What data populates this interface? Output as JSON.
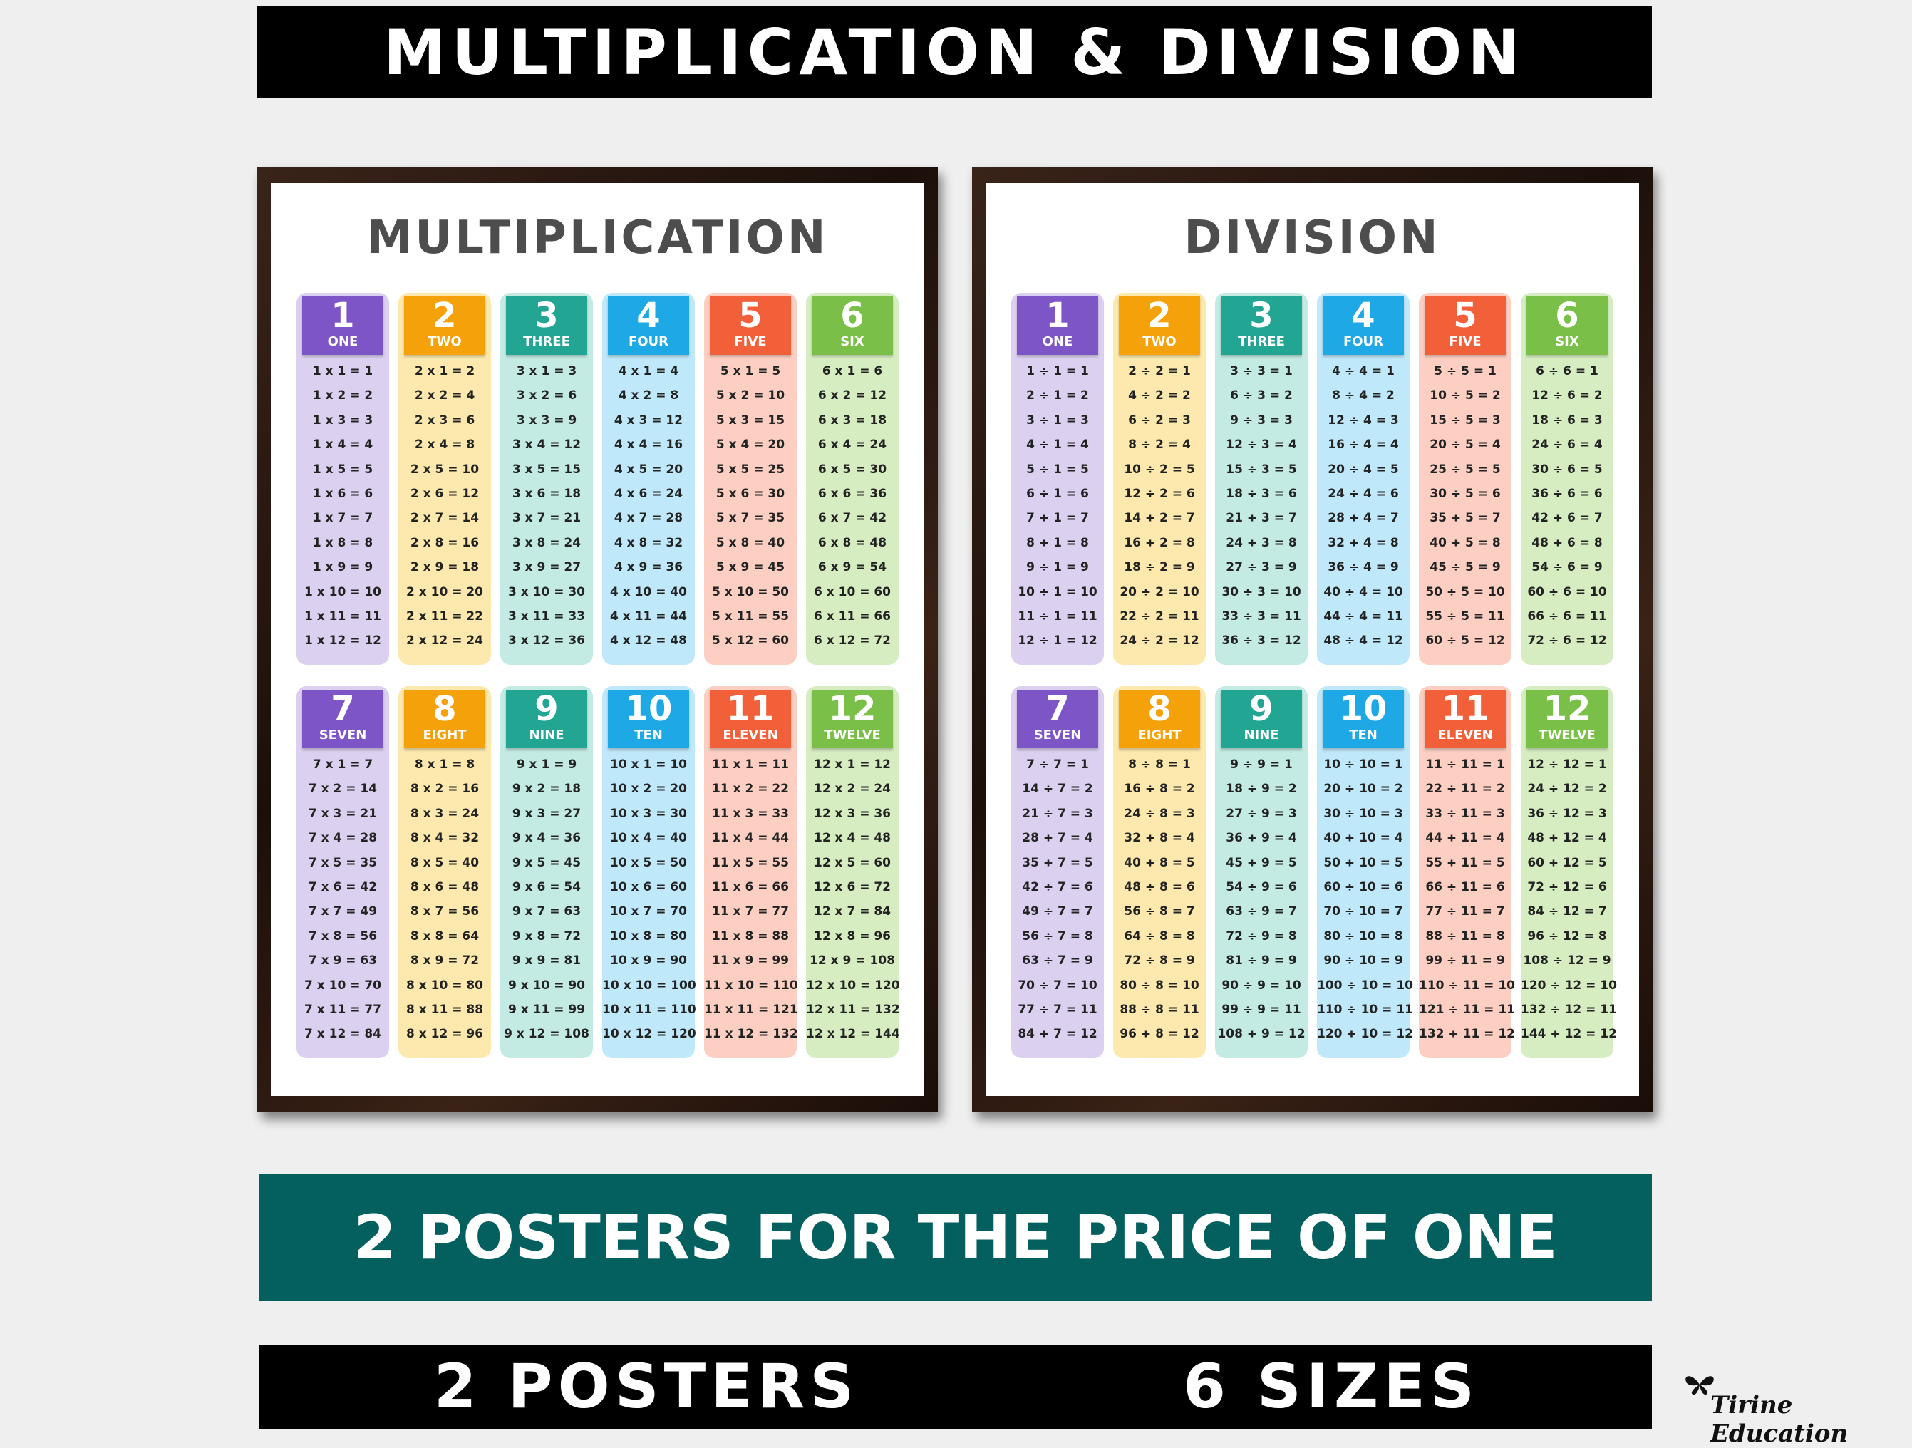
{
  "header": {
    "title": "MULTIPLICATION & DIVISION"
  },
  "posters": [
    {
      "title": "MULTIPLICATION",
      "tables": [
        {
          "number": "1",
          "word": "ONE",
          "rows": [
            "1 x 1 = 1",
            "1 x 2 = 2",
            "1 x 3 = 3",
            "1 x 4 = 4",
            "1 x 5 = 5",
            "1 x 6 = 6",
            "1 x 7 = 7",
            "1 x 8 = 8",
            "1 x 9 = 9",
            "1 x 10 = 10",
            "1 x 11 = 11",
            "1 x 12 = 12"
          ]
        },
        {
          "number": "2",
          "word": "TWO",
          "rows": [
            "2 x 1 = 2",
            "2 x 2 = 4",
            "2 x 3 = 6",
            "2 x 4 = 8",
            "2 x 5 = 10",
            "2 x 6 = 12",
            "2 x 7 = 14",
            "2 x 8 = 16",
            "2 x 9 = 18",
            "2 x 10 = 20",
            "2 x 11 = 22",
            "2 x 12 = 24"
          ]
        },
        {
          "number": "3",
          "word": "THREE",
          "rows": [
            "3 x 1 = 3",
            "3 x 2 = 6",
            "3 x 3 = 9",
            "3 x 4 = 12",
            "3 x 5 = 15",
            "3 x 6 = 18",
            "3 x 7 = 21",
            "3 x 8 = 24",
            "3 x 9 = 27",
            "3 x 10 = 30",
            "3 x 11 = 33",
            "3 x 12 = 36"
          ]
        },
        {
          "number": "4",
          "word": "FOUR",
          "rows": [
            "4 x 1 = 4",
            "4 x 2 = 8",
            "4 x 3 = 12",
            "4 x 4 = 16",
            "4 x 5 = 20",
            "4 x 6 = 24",
            "4 x 7 = 28",
            "4 x 8 = 32",
            "4 x 9 = 36",
            "4 x 10 = 40",
            "4 x 11 = 44",
            "4 x 12 = 48"
          ]
        },
        {
          "number": "5",
          "word": "FIVE",
          "rows": [
            "5 x 1 = 5",
            "5 x 2 = 10",
            "5 x 3 = 15",
            "5 x 4 = 20",
            "5 x 5 = 25",
            "5 x 6 = 30",
            "5 x 7 = 35",
            "5 x 8 = 40",
            "5 x 9 = 45",
            "5 x 10 = 50",
            "5 x 11 = 55",
            "5 x 12 = 60"
          ]
        },
        {
          "number": "6",
          "word": "SIX",
          "rows": [
            "6 x 1 = 6",
            "6 x 2 = 12",
            "6 x 3 = 18",
            "6 x 4 = 24",
            "6 x 5 = 30",
            "6 x 6 = 36",
            "6 x 7 = 42",
            "6 x 8 = 48",
            "6 x 9 = 54",
            "6 x 10 = 60",
            "6 x 11 = 66",
            "6 x 12 = 72"
          ]
        },
        {
          "number": "7",
          "word": "SEVEN",
          "rows": [
            "7 x 1 = 7",
            "7 x 2 = 14",
            "7 x 3 = 21",
            "7 x 4 = 28",
            "7 x 5 = 35",
            "7 x 6 = 42",
            "7 x 7 = 49",
            "7 x 8 = 56",
            "7 x 9 = 63",
            "7 x 10 = 70",
            "7 x 11 = 77",
            "7 x 12 = 84"
          ]
        },
        {
          "number": "8",
          "word": "EIGHT",
          "rows": [
            "8 x 1 = 8",
            "8 x 2 = 16",
            "8 x 3 = 24",
            "8 x 4 = 32",
            "8 x 5 = 40",
            "8 x 6 = 48",
            "8 x 7 = 56",
            "8 x 8 = 64",
            "8 x 9 = 72",
            "8 x 10 = 80",
            "8 x 11 = 88",
            "8 x 12 = 96"
          ]
        },
        {
          "number": "9",
          "word": "NINE",
          "rows": [
            "9 x 1 = 9",
            "9 x 2 = 18",
            "9 x 3 = 27",
            "9 x 4 = 36",
            "9 x 5 = 45",
            "9 x 6 = 54",
            "9 x 7 = 63",
            "9 x 8 = 72",
            "9 x 9 = 81",
            "9 x 10 = 90",
            "9 x 11 = 99",
            "9 x 12 = 108"
          ]
        },
        {
          "number": "10",
          "word": "TEN",
          "rows": [
            "10 x 1 = 10",
            "10 x 2 = 20",
            "10 x 3 = 30",
            "10 x 4 = 40",
            "10 x 5 = 50",
            "10 x 6 = 60",
            "10 x 7 = 70",
            "10 x 8 = 80",
            "10 x 9 = 90",
            "10 x 10 = 100",
            "10 x 11 = 110",
            "10 x 12 = 120"
          ]
        },
        {
          "number": "11",
          "word": "ELEVEN",
          "rows": [
            "11 x 1 = 11",
            "11 x 2 = 22",
            "11 x 3 = 33",
            "11 x 4 = 44",
            "11 x 5 = 55",
            "11 x 6 = 66",
            "11 x 7 = 77",
            "11 x 8 = 88",
            "11 x 9 = 99",
            "11 x 10 = 110",
            "11 x 11 = 121",
            "11 x 12 = 132"
          ]
        },
        {
          "number": "12",
          "word": "TWELVE",
          "rows": [
            "12 x 1 = 12",
            "12 x 2 = 24",
            "12 x 3 = 36",
            "12 x 4 = 48",
            "12 x 5 = 60",
            "12 x 6 = 72",
            "12 x 7 = 84",
            "12 x 8 = 96",
            "12 x 9 = 108",
            "12 x 10 = 120",
            "12 x 11 = 132",
            "12 x 12 = 144"
          ]
        }
      ]
    },
    {
      "title": "DIVISION",
      "tables": [
        {
          "number": "1",
          "word": "ONE",
          "rows": [
            "1 ÷ 1 = 1",
            "2 ÷ 1 = 2",
            "3 ÷ 1 = 3",
            "4 ÷ 1 = 4",
            "5 ÷ 1 = 5",
            "6 ÷ 1 = 6",
            "7 ÷ 1 = 7",
            "8 ÷ 1 = 8",
            "9 ÷ 1 = 9",
            "10 ÷ 1 = 10",
            "11 ÷ 1 = 11",
            "12 ÷ 1 = 12"
          ]
        },
        {
          "number": "2",
          "word": "TWO",
          "rows": [
            "2 ÷ 2 = 1",
            "4 ÷ 2 = 2",
            "6 ÷ 2 = 3",
            "8 ÷ 2 = 4",
            "10 ÷ 2 = 5",
            "12 ÷ 2 = 6",
            "14 ÷ 2 = 7",
            "16 ÷ 2 = 8",
            "18 ÷ 2 = 9",
            "20 ÷ 2 = 10",
            "22 ÷ 2 = 11",
            "24 ÷ 2 = 12"
          ]
        },
        {
          "number": "3",
          "word": "THREE",
          "rows": [
            "3 ÷ 3 = 1",
            "6 ÷ 3 = 2",
            "9 ÷ 3 = 3",
            "12 ÷ 3 = 4",
            "15 ÷ 3 = 5",
            "18 ÷ 3 = 6",
            "21 ÷ 3 = 7",
            "24 ÷ 3 = 8",
            "27 ÷ 3 = 9",
            "30 ÷ 3 = 10",
            "33 ÷ 3 = 11",
            "36 ÷ 3 = 12"
          ]
        },
        {
          "number": "4",
          "word": "FOUR",
          "rows": [
            "4 ÷ 4 = 1",
            "8 ÷ 4 = 2",
            "12 ÷ 4 = 3",
            "16 ÷ 4 = 4",
            "20 ÷ 4 = 5",
            "24 ÷ 4 = 6",
            "28 ÷ 4 = 7",
            "32 ÷ 4 = 8",
            "36 ÷ 4 = 9",
            "40 ÷ 4 = 10",
            "44 ÷ 4 = 11",
            "48 ÷ 4 = 12"
          ]
        },
        {
          "number": "5",
          "word": "FIVE",
          "rows": [
            "5 ÷ 5 = 1",
            "10 ÷ 5 = 2",
            "15 ÷ 5 = 3",
            "20 ÷ 5 = 4",
            "25 ÷ 5 = 5",
            "30 ÷ 5 = 6",
            "35 ÷ 5 = 7",
            "40 ÷ 5 = 8",
            "45 ÷ 5 = 9",
            "50 ÷ 5 = 10",
            "55 ÷ 5 = 11",
            "60 ÷ 5 = 12"
          ]
        },
        {
          "number": "6",
          "word": "SIX",
          "rows": [
            "6 ÷ 6 = 1",
            "12 ÷ 6 = 2",
            "18 ÷ 6 = 3",
            "24 ÷ 6 = 4",
            "30 ÷ 6 = 5",
            "36 ÷ 6 = 6",
            "42 ÷ 6 = 7",
            "48 ÷ 6 = 8",
            "54 ÷ 6 = 9",
            "60 ÷ 6 = 10",
            "66 ÷ 6 = 11",
            "72 ÷ 6 = 12"
          ]
        },
        {
          "number": "7",
          "word": "SEVEN",
          "rows": [
            "7 ÷ 7 = 1",
            "14 ÷ 7 = 2",
            "21 ÷ 7 = 3",
            "28 ÷ 7 = 4",
            "35 ÷ 7 = 5",
            "42 ÷ 7 = 6",
            "49 ÷ 7 = 7",
            "56 ÷ 7 = 8",
            "63 ÷ 7 = 9",
            "70 ÷ 7 = 10",
            "77 ÷ 7 = 11",
            "84 ÷ 7 = 12"
          ]
        },
        {
          "number": "8",
          "word": "EIGHT",
          "rows": [
            "8 ÷ 8 = 1",
            "16 ÷ 8 = 2",
            "24 ÷ 8 = 3",
            "32 ÷ 8 = 4",
            "40 ÷ 8 = 5",
            "48 ÷ 8 = 6",
            "56 ÷ 8 = 7",
            "64 ÷ 8 = 8",
            "72 ÷ 8 = 9",
            "80 ÷ 8 = 10",
            "88 ÷ 8 = 11",
            "96 ÷ 8 = 12"
          ]
        },
        {
          "number": "9",
          "word": "NINE",
          "rows": [
            "9 ÷ 9 = 1",
            "18 ÷ 9 = 2",
            "27 ÷ 9 = 3",
            "36 ÷ 9 = 4",
            "45 ÷ 9 = 5",
            "54 ÷ 9 = 6",
            "63 ÷ 9 = 7",
            "72 ÷ 9 = 8",
            "81 ÷ 9 = 9",
            "90 ÷ 9 = 10",
            "99 ÷ 9 = 11",
            "108 ÷ 9 = 12"
          ]
        },
        {
          "number": "10",
          "word": "TEN",
          "rows": [
            "10 ÷ 10 = 1",
            "20 ÷ 10 = 2",
            "30 ÷ 10 = 3",
            "40 ÷ 10 = 4",
            "50 ÷ 10 = 5",
            "60 ÷ 10 = 6",
            "70 ÷ 10 = 7",
            "80 ÷ 10 = 8",
            "90 ÷ 10 = 9",
            "100 ÷ 10 = 10",
            "110 ÷ 10 = 11",
            "120 ÷ 10 = 12"
          ]
        },
        {
          "number": "11",
          "word": "ELEVEN",
          "rows": [
            "11 ÷ 11 = 1",
            "22 ÷ 11 = 2",
            "33 ÷ 11 = 3",
            "44 ÷ 11 = 4",
            "55 ÷ 11 = 5",
            "66 ÷ 11 = 6",
            "77 ÷ 11 = 7",
            "88 ÷ 11 = 8",
            "99 ÷ 11 = 9",
            "110 ÷ 11 = 10",
            "121 ÷ 11 = 11",
            "132 ÷ 11 = 12"
          ]
        },
        {
          "number": "12",
          "word": "TWELVE",
          "rows": [
            "12 ÷ 12 = 1",
            "24 ÷ 12 = 2",
            "36 ÷ 12 = 3",
            "48 ÷ 12 = 4",
            "60 ÷ 12 = 5",
            "72 ÷ 12 = 6",
            "84 ÷ 12 = 7",
            "96 ÷ 12 = 8",
            "108 ÷ 12 = 9",
            "120 ÷ 12 = 10",
            "132 ÷ 12 = 11",
            "144 ÷ 12 = 12"
          ]
        }
      ]
    }
  ],
  "banner": {
    "text": "2 POSTERS FOR THE PRICE OF ONE"
  },
  "footer": {
    "left": "2 POSTERS",
    "right": "6 SIZES"
  },
  "brand": "Tirine Education"
}
